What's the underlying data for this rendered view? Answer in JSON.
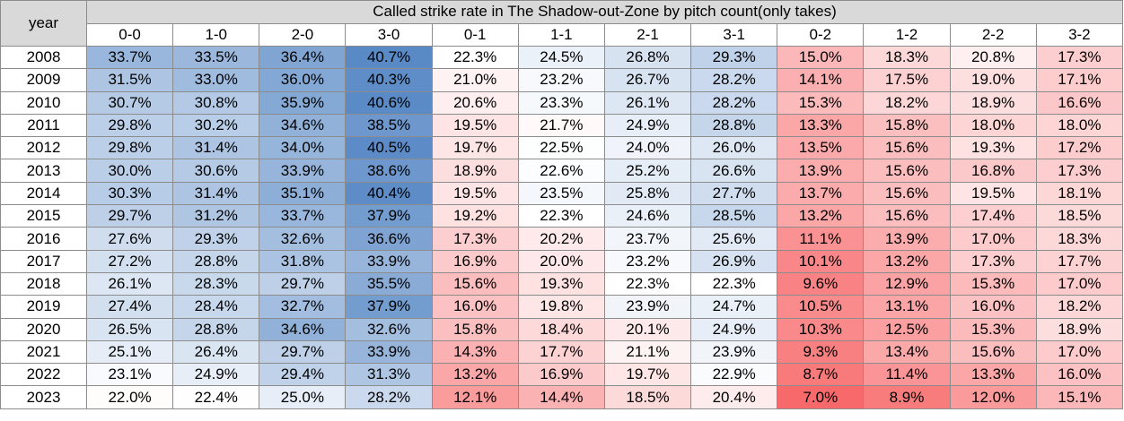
{
  "chart_data": {
    "type": "table",
    "title": "Called strike rate in The Shadow-out-Zone by pitch count(only takes)",
    "row_header": "year",
    "columns": [
      "0-0",
      "1-0",
      "2-0",
      "3-0",
      "0-1",
      "1-1",
      "2-1",
      "3-1",
      "0-2",
      "1-2",
      "2-2",
      "3-2"
    ],
    "rows": [
      {
        "year": "2008",
        "values": [
          33.7,
          33.5,
          36.4,
          40.7,
          22.3,
          24.5,
          26.8,
          29.3,
          15.0,
          18.3,
          20.8,
          17.3
        ]
      },
      {
        "year": "2009",
        "values": [
          31.5,
          33.0,
          36.0,
          40.3,
          21.0,
          23.2,
          26.7,
          28.2,
          14.1,
          17.5,
          19.0,
          17.1
        ]
      },
      {
        "year": "2010",
        "values": [
          30.7,
          30.8,
          35.9,
          40.6,
          20.6,
          23.3,
          26.1,
          28.2,
          15.3,
          18.2,
          18.9,
          16.6
        ]
      },
      {
        "year": "2011",
        "values": [
          29.8,
          30.2,
          34.6,
          38.5,
          19.5,
          21.7,
          24.9,
          28.8,
          13.3,
          15.8,
          18.0,
          18.0
        ]
      },
      {
        "year": "2012",
        "values": [
          29.8,
          31.4,
          34.0,
          40.5,
          19.7,
          22.5,
          24.0,
          26.0,
          13.5,
          15.6,
          19.3,
          17.2
        ]
      },
      {
        "year": "2013",
        "values": [
          30.0,
          30.6,
          33.9,
          38.6,
          18.9,
          22.6,
          25.2,
          26.6,
          13.9,
          15.6,
          16.8,
          17.3
        ]
      },
      {
        "year": "2014",
        "values": [
          30.3,
          31.4,
          35.1,
          40.4,
          19.5,
          23.5,
          25.8,
          27.7,
          13.7,
          15.6,
          19.5,
          18.1
        ]
      },
      {
        "year": "2015",
        "values": [
          29.7,
          31.2,
          33.7,
          37.9,
          19.2,
          22.3,
          24.6,
          28.5,
          13.2,
          15.6,
          17.4,
          18.5
        ]
      },
      {
        "year": "2016",
        "values": [
          27.6,
          29.3,
          32.6,
          36.6,
          17.3,
          20.2,
          23.7,
          25.6,
          11.1,
          13.9,
          17.0,
          18.3
        ]
      },
      {
        "year": "2017",
        "values": [
          27.2,
          28.8,
          31.8,
          33.9,
          16.9,
          20.0,
          23.2,
          26.9,
          10.1,
          13.2,
          17.3,
          17.7
        ]
      },
      {
        "year": "2018",
        "values": [
          26.1,
          28.3,
          29.7,
          35.5,
          15.6,
          19.3,
          22.3,
          22.3,
          9.6,
          12.9,
          15.3,
          17.0
        ]
      },
      {
        "year": "2019",
        "values": [
          27.4,
          28.4,
          32.7,
          37.9,
          16.0,
          19.8,
          23.9,
          24.7,
          10.5,
          13.1,
          16.0,
          18.2
        ]
      },
      {
        "year": "2020",
        "values": [
          26.5,
          28.8,
          34.6,
          32.6,
          15.8,
          18.4,
          20.1,
          24.9,
          10.3,
          12.5,
          15.3,
          18.9
        ]
      },
      {
        "year": "2021",
        "values": [
          25.1,
          26.4,
          29.7,
          33.9,
          14.3,
          17.7,
          21.1,
          23.9,
          9.3,
          13.4,
          15.6,
          17.0
        ]
      },
      {
        "year": "2022",
        "values": [
          23.1,
          24.9,
          29.4,
          31.3,
          13.2,
          16.9,
          19.7,
          22.9,
          8.7,
          11.4,
          13.3,
          16.0
        ]
      },
      {
        "year": "2023",
        "values": [
          22.0,
          22.4,
          25.0,
          28.2,
          12.1,
          14.4,
          18.5,
          20.4,
          7.0,
          8.9,
          12.0,
          15.1
        ]
      }
    ],
    "value_suffix": "%",
    "color_scale": {
      "low": "#f8696b",
      "mid": "#ffffff",
      "high": "#5a8ac6"
    }
  }
}
